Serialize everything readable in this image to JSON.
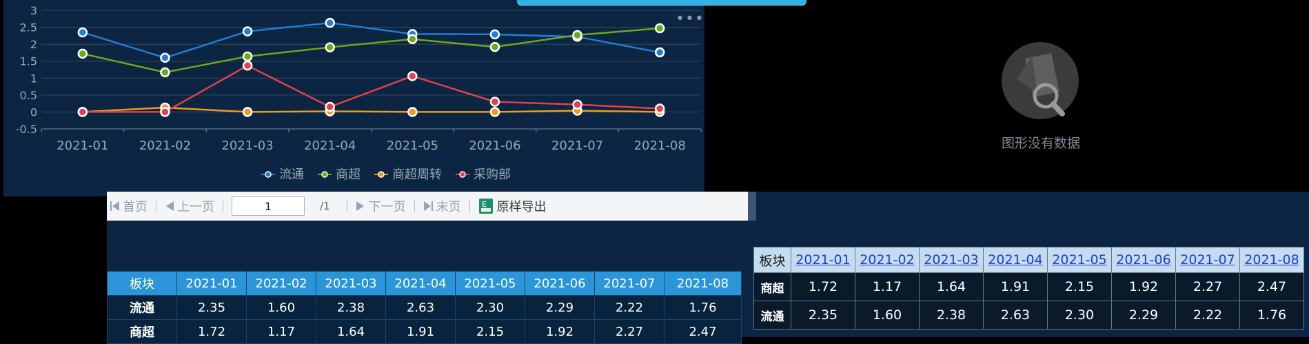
{
  "chart_data": {
    "type": "line",
    "categories": [
      "2021-01",
      "2021-02",
      "2021-03",
      "2021-04",
      "2021-05",
      "2021-06",
      "2021-07",
      "2021-08"
    ],
    "ylim": [
      -0.5,
      3
    ],
    "yticks": [
      "3",
      "2.5",
      "2",
      "1.5",
      "1",
      "0.5",
      "0",
      "-0.5"
    ],
    "grid": true,
    "legend_position": "bottom",
    "series": [
      {
        "name": "流通",
        "color": "#1f7ed8",
        "values": [
          2.35,
          1.6,
          2.38,
          2.63,
          2.3,
          2.29,
          2.22,
          1.76
        ]
      },
      {
        "name": "商超",
        "color": "#6aaa1c",
        "values": [
          1.72,
          1.17,
          1.64,
          1.91,
          2.15,
          1.92,
          2.27,
          2.47
        ]
      },
      {
        "name": "商超周转",
        "color": "#f09a1b",
        "values": [
          0.0,
          0.13,
          0.0,
          0.02,
          0.0,
          0.0,
          0.04,
          0.0
        ]
      },
      {
        "name": "采购部",
        "color": "#e4404a",
        "values": [
          0.0,
          0.0,
          1.37,
          0.15,
          1.06,
          0.3,
          0.22,
          0.1
        ]
      }
    ]
  },
  "chart_menu_icon": "more-icon",
  "no_data": {
    "icon": "magnifier-icon",
    "text": "图形没有数据"
  },
  "toolbar": {
    "first": "首页",
    "prev": "上一页",
    "page_value": "1",
    "total": "/1",
    "next": "下一页",
    "last": "末页",
    "export": "原样导出",
    "export_icon_letter": "E"
  },
  "table_left": {
    "header": [
      "板块",
      "2021-01",
      "2021-02",
      "2021-03",
      "2021-04",
      "2021-05",
      "2021-06",
      "2021-07",
      "2021-08"
    ],
    "rows": [
      [
        "流通",
        "2.35",
        "1.60",
        "2.38",
        "2.63",
        "2.30",
        "2.29",
        "2.22",
        "1.76"
      ],
      [
        "商超",
        "1.72",
        "1.17",
        "1.64",
        "1.91",
        "2.15",
        "1.92",
        "2.27",
        "2.47"
      ]
    ]
  },
  "table_right": {
    "header": [
      "板块",
      "2021-01",
      "2021-02",
      "2021-03",
      "2021-04",
      "2021-05",
      "2021-06",
      "2021-07",
      "2021-08"
    ],
    "rows": [
      [
        "商超",
        "1.72",
        "1.17",
        "1.64",
        "1.91",
        "2.15",
        "1.92",
        "2.27",
        "2.47"
      ],
      [
        "流通",
        "2.35",
        "1.60",
        "2.38",
        "2.63",
        "2.30",
        "2.29",
        "2.22",
        "1.76"
      ]
    ]
  },
  "colors": {
    "panel_bg": "#0b2542",
    "header_blue": "#2a95d8",
    "header_light": "#c5dbf0",
    "link": "#1c3fd0"
  }
}
